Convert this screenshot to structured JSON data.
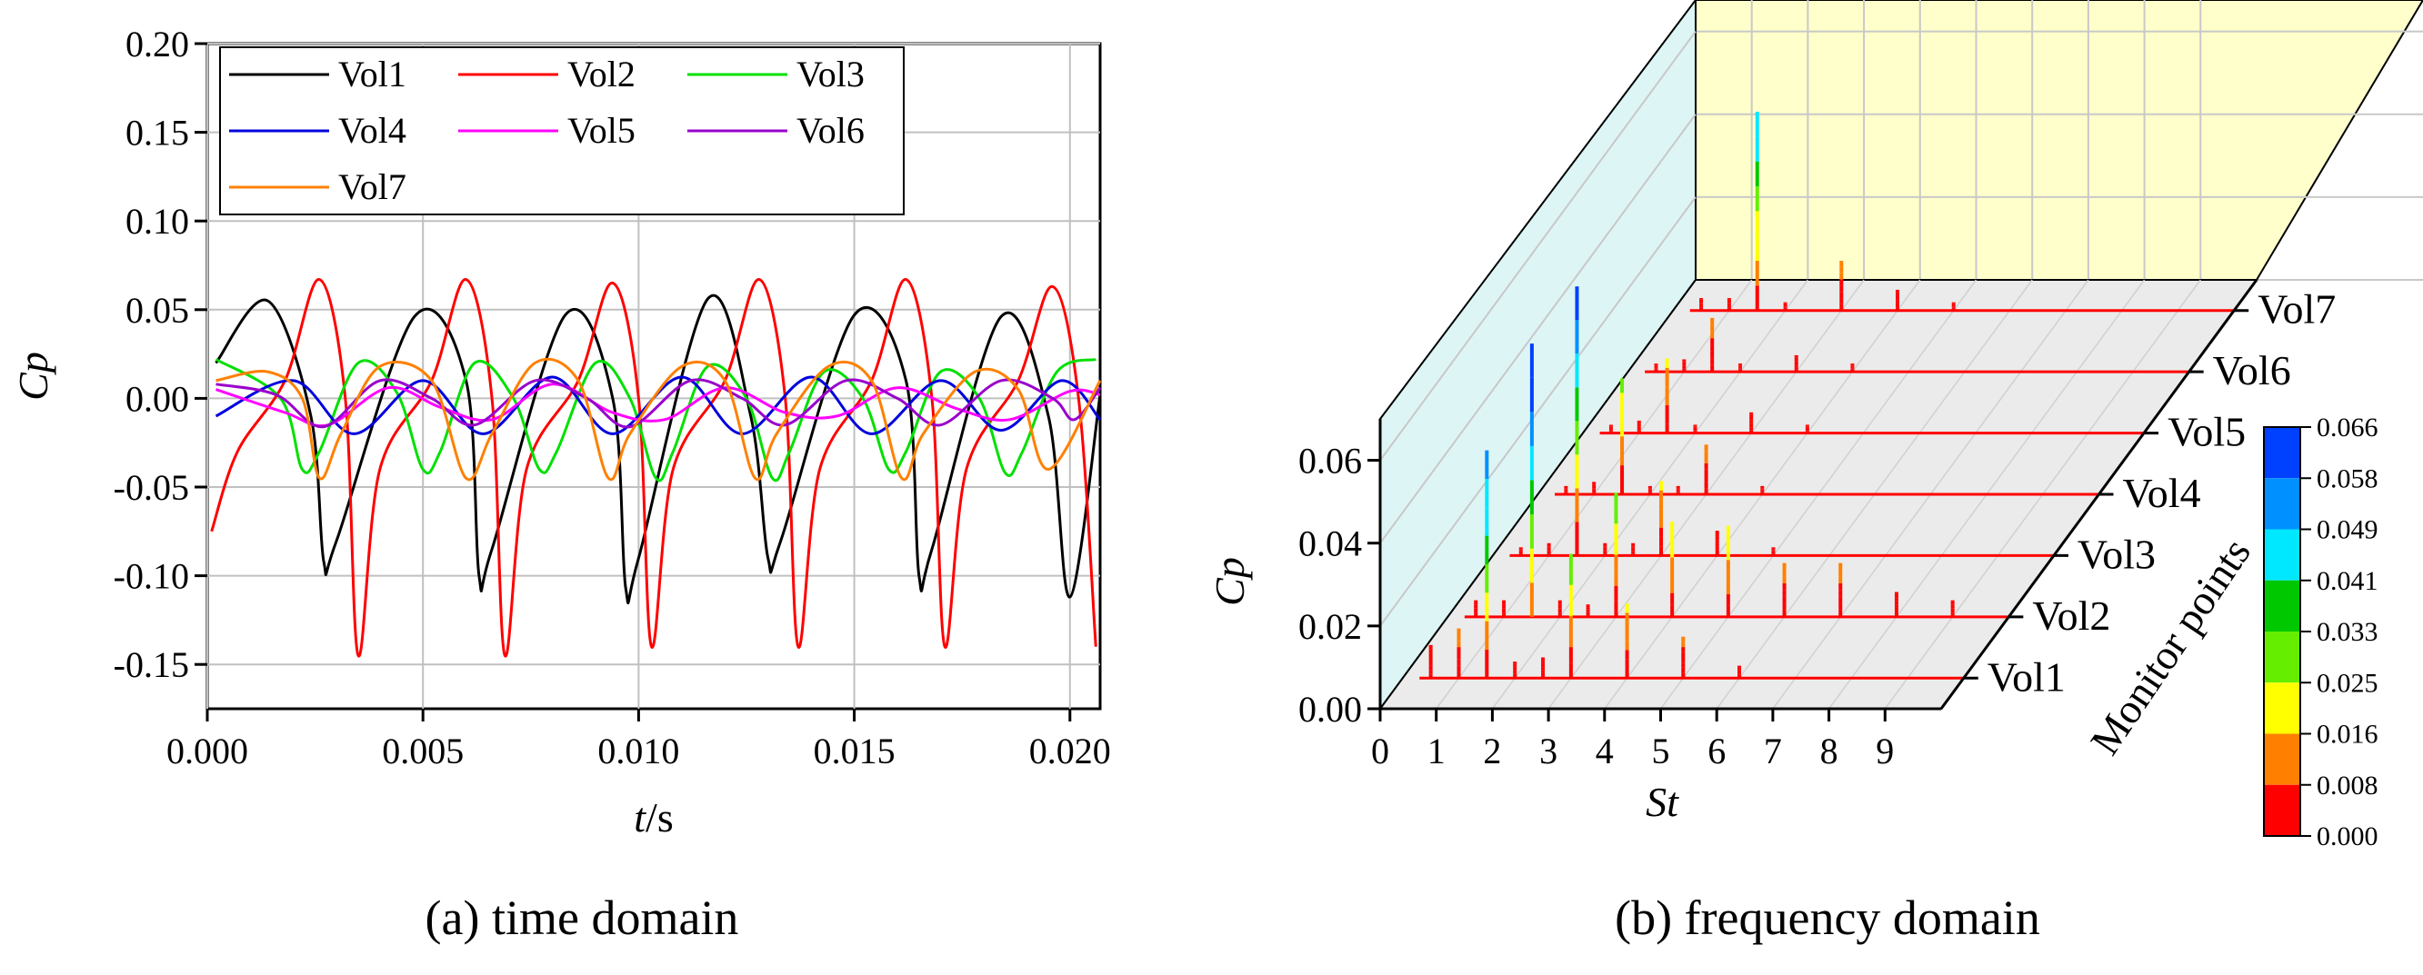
{
  "chart_data": [
    {
      "type": "line",
      "caption": "(a) time domain",
      "xlabel": "t/s",
      "ylabel": "Cp",
      "xlim": [
        0.0,
        0.0207
      ],
      "ylim": [
        -0.175,
        0.2
      ],
      "xticks": [
        "0.000",
        "0.005",
        "0.010",
        "0.015",
        "0.020"
      ],
      "yticks": [
        "-0.15",
        "-0.10",
        "-0.05",
        "0.00",
        "0.05",
        "0.10",
        "0.15",
        "0.20"
      ],
      "grid": true,
      "legend_position": "top-left",
      "series": [
        {
          "name": "Vol1",
          "color": "#000000",
          "points": [
            [
              0.0002,
              0.02
            ],
            [
              0.0014,
              0.055
            ],
            [
              0.0024,
              -0.01
            ],
            [
              0.0027,
              -0.092
            ],
            [
              0.003,
              -0.08
            ],
            [
              0.0048,
              0.046
            ],
            [
              0.006,
              0.01
            ],
            [
              0.0063,
              -0.1
            ],
            [
              0.0066,
              -0.085
            ],
            [
              0.0083,
              0.047
            ],
            [
              0.0094,
              0.0
            ],
            [
              0.0097,
              -0.107
            ],
            [
              0.01,
              -0.09
            ],
            [
              0.0116,
              0.056
            ],
            [
              0.0126,
              -0.01
            ],
            [
              0.013,
              -0.09
            ],
            [
              0.0133,
              -0.08
            ],
            [
              0.015,
              0.047
            ],
            [
              0.0162,
              0.01
            ],
            [
              0.0165,
              -0.1
            ],
            [
              0.0168,
              -0.085
            ],
            [
              0.0184,
              0.046
            ],
            [
              0.0195,
              -0.01
            ],
            [
              0.02,
              -0.112
            ],
            [
              0.0207,
              0.002
            ]
          ]
        },
        {
          "name": "Vol2",
          "color": "#ff0000",
          "points": [
            [
              0.0001,
              -0.075
            ],
            [
              0.0007,
              -0.03
            ],
            [
              0.0018,
              0.01
            ],
            [
              0.0026,
              0.067
            ],
            [
              0.0032,
              0.0
            ],
            [
              0.0035,
              -0.145
            ],
            [
              0.004,
              -0.04
            ],
            [
              0.0052,
              0.01
            ],
            [
              0.006,
              0.067
            ],
            [
              0.0066,
              0.0
            ],
            [
              0.0069,
              -0.145
            ],
            [
              0.0074,
              -0.04
            ],
            [
              0.0086,
              0.01
            ],
            [
              0.0094,
              0.065
            ],
            [
              0.01,
              0.0
            ],
            [
              0.0103,
              -0.14
            ],
            [
              0.0108,
              -0.04
            ],
            [
              0.012,
              0.01
            ],
            [
              0.0128,
              0.067
            ],
            [
              0.0134,
              0.0
            ],
            [
              0.0137,
              -0.14
            ],
            [
              0.0142,
              -0.04
            ],
            [
              0.0154,
              0.01
            ],
            [
              0.0162,
              0.067
            ],
            [
              0.0168,
              0.0
            ],
            [
              0.0171,
              -0.14
            ],
            [
              0.0176,
              -0.04
            ],
            [
              0.0188,
              0.01
            ],
            [
              0.0196,
              0.063
            ],
            [
              0.0202,
              0.0
            ],
            [
              0.0206,
              -0.14
            ]
          ]
        },
        {
          "name": "Vol3",
          "color": "#00e000",
          "points": [
            [
              0.0002,
              0.022
            ],
            [
              0.0017,
              0.0
            ],
            [
              0.0022,
              -0.04
            ],
            [
              0.0026,
              -0.03
            ],
            [
              0.0035,
              0.02
            ],
            [
              0.0044,
              0.003
            ],
            [
              0.005,
              -0.04
            ],
            [
              0.0054,
              -0.03
            ],
            [
              0.0062,
              0.02
            ],
            [
              0.0071,
              0.0
            ],
            [
              0.0077,
              -0.04
            ],
            [
              0.0081,
              -0.03
            ],
            [
              0.009,
              0.02
            ],
            [
              0.0098,
              0.0
            ],
            [
              0.0104,
              -0.045
            ],
            [
              0.0108,
              -0.03
            ],
            [
              0.0116,
              0.018
            ],
            [
              0.0125,
              0.0
            ],
            [
              0.0131,
              -0.045
            ],
            [
              0.0135,
              -0.03
            ],
            [
              0.0143,
              0.015
            ],
            [
              0.0152,
              0.0
            ],
            [
              0.0158,
              -0.04
            ],
            [
              0.0162,
              -0.03
            ],
            [
              0.017,
              0.015
            ],
            [
              0.0179,
              0.0
            ],
            [
              0.0185,
              -0.042
            ],
            [
              0.0189,
              -0.03
            ],
            [
              0.0197,
              0.015
            ],
            [
              0.0206,
              0.022
            ]
          ]
        },
        {
          "name": "Vol4",
          "color": "#0000dd",
          "points": [
            [
              0.0002,
              -0.01
            ],
            [
              0.002,
              0.01
            ],
            [
              0.0034,
              -0.02
            ],
            [
              0.005,
              0.01
            ],
            [
              0.0064,
              -0.02
            ],
            [
              0.008,
              0.012
            ],
            [
              0.0094,
              -0.02
            ],
            [
              0.011,
              0.012
            ],
            [
              0.0124,
              -0.02
            ],
            [
              0.014,
              0.012
            ],
            [
              0.0154,
              -0.02
            ],
            [
              0.017,
              0.01
            ],
            [
              0.0184,
              -0.018
            ],
            [
              0.0198,
              0.01
            ],
            [
              0.0207,
              -0.012
            ]
          ]
        },
        {
          "name": "Vol5",
          "color": "#ff00ff",
          "points": [
            [
              0.0002,
              0.005
            ],
            [
              0.0018,
              -0.008
            ],
            [
              0.0028,
              -0.015
            ],
            [
              0.0042,
              0.006
            ],
            [
              0.0054,
              -0.005
            ],
            [
              0.0066,
              -0.012
            ],
            [
              0.008,
              0.008
            ],
            [
              0.0094,
              -0.008
            ],
            [
              0.0106,
              -0.012
            ],
            [
              0.012,
              0.006
            ],
            [
              0.0134,
              -0.008
            ],
            [
              0.0146,
              -0.01
            ],
            [
              0.016,
              0.006
            ],
            [
              0.0174,
              -0.006
            ],
            [
              0.0186,
              -0.012
            ],
            [
              0.02,
              0.004
            ],
            [
              0.0207,
              0.002
            ]
          ]
        },
        {
          "name": "Vol6",
          "color": "#9900cc",
          "points": [
            [
              0.0002,
              0.008
            ],
            [
              0.0016,
              0.002
            ],
            [
              0.0027,
              -0.016
            ],
            [
              0.004,
              0.01
            ],
            [
              0.0052,
              0.0
            ],
            [
              0.0062,
              -0.015
            ],
            [
              0.0076,
              0.01
            ],
            [
              0.0088,
              0.0
            ],
            [
              0.0098,
              -0.016
            ],
            [
              0.0112,
              0.01
            ],
            [
              0.0124,
              0.0
            ],
            [
              0.0134,
              -0.015
            ],
            [
              0.0148,
              0.01
            ],
            [
              0.016,
              0.0
            ],
            [
              0.017,
              -0.015
            ],
            [
              0.0184,
              0.01
            ],
            [
              0.0196,
              0.0
            ],
            [
              0.0201,
              -0.012
            ],
            [
              0.0207,
              0.006
            ]
          ]
        },
        {
          "name": "Vol7",
          "color": "#ff8000",
          "points": [
            [
              0.0002,
              0.01
            ],
            [
              0.0014,
              0.015
            ],
            [
              0.0022,
              0.0
            ],
            [
              0.0026,
              -0.045
            ],
            [
              0.0031,
              -0.02
            ],
            [
              0.004,
              0.018
            ],
            [
              0.0052,
              0.01
            ],
            [
              0.006,
              -0.045
            ],
            [
              0.0066,
              -0.02
            ],
            [
              0.0076,
              0.02
            ],
            [
              0.0086,
              0.01
            ],
            [
              0.0093,
              -0.045
            ],
            [
              0.0098,
              -0.02
            ],
            [
              0.011,
              0.018
            ],
            [
              0.012,
              0.01
            ],
            [
              0.0127,
              -0.045
            ],
            [
              0.0132,
              -0.02
            ],
            [
              0.0144,
              0.018
            ],
            [
              0.0154,
              0.01
            ],
            [
              0.0161,
              -0.045
            ],
            [
              0.0166,
              -0.02
            ],
            [
              0.0178,
              0.015
            ],
            [
              0.0188,
              0.005
            ],
            [
              0.0195,
              -0.04
            ],
            [
              0.0207,
              0.01
            ]
          ]
        }
      ]
    },
    {
      "type": "waterfall-3d",
      "caption": "(b) frequency domain",
      "xlabel": "St",
      "ylabel": "Cp",
      "zlabel": "Monitor points",
      "xticks": [
        "0",
        "1",
        "2",
        "3",
        "4",
        "5",
        "6",
        "7",
        "8",
        "9"
      ],
      "yticks": [
        "0.00",
        "0.02",
        "0.04",
        "0.06"
      ],
      "ylim": [
        0,
        0.07
      ],
      "categories": [
        "Vol1",
        "Vol2",
        "Vol3",
        "Vol4",
        "Vol5",
        "Vol6",
        "Vol7"
      ],
      "colorbar": {
        "ticks": [
          "0.066",
          "0.058",
          "0.049",
          "0.041",
          "0.033",
          "0.025",
          "0.016",
          "0.008",
          "0.000"
        ],
        "colors": [
          "#0040ff",
          "#0090ff",
          "#00e8ff",
          "#00c800",
          "#66ee00",
          "#ffff00",
          "#ff8000",
          "#ff0000"
        ]
      },
      "series": [
        {
          "name": "Vol1",
          "peaks": [
            [
              0.5,
              0.008
            ],
            [
              1.0,
              0.012
            ],
            [
              1.5,
              0.055
            ],
            [
              2.0,
              0.004
            ],
            [
              2.5,
              0.005
            ],
            [
              3.0,
              0.03
            ],
            [
              4.0,
              0.018
            ],
            [
              5.0,
              0.01
            ],
            [
              6.0,
              0.003
            ]
          ]
        },
        {
          "name": "Vol2",
          "peaks": [
            [
              0.5,
              0.004
            ],
            [
              1.0,
              0.004
            ],
            [
              1.5,
              0.066
            ],
            [
              2.0,
              0.004
            ],
            [
              2.5,
              0.003
            ],
            [
              3.0,
              0.03
            ],
            [
              4.0,
              0.023
            ],
            [
              5.0,
              0.022
            ],
            [
              6.0,
              0.013
            ],
            [
              7.0,
              0.013
            ],
            [
              8.0,
              0.006
            ],
            [
              9.0,
              0.004
            ]
          ]
        },
        {
          "name": "Vol3",
          "peaks": [
            [
              0.5,
              0.002
            ],
            [
              1.0,
              0.003
            ],
            [
              1.5,
              0.065
            ],
            [
              2.0,
              0.003
            ],
            [
              2.5,
              0.003
            ],
            [
              3.0,
              0.018
            ],
            [
              4.0,
              0.006
            ],
            [
              5.0,
              0.002
            ]
          ]
        },
        {
          "name": "Vol4",
          "peaks": [
            [
              0.5,
              0.002
            ],
            [
              1.0,
              0.003
            ],
            [
              1.5,
              0.028
            ],
            [
              2.0,
              0.002
            ],
            [
              2.5,
              0.002
            ],
            [
              3.0,
              0.012
            ],
            [
              4.0,
              0.002
            ]
          ]
        },
        {
          "name": "Vol5",
          "peaks": [
            [
              0.5,
              0.002
            ],
            [
              1.0,
              0.003
            ],
            [
              1.5,
              0.018
            ],
            [
              2.0,
              0.002
            ],
            [
              3.0,
              0.005
            ],
            [
              4.0,
              0.002
            ]
          ]
        },
        {
          "name": "Vol6",
          "peaks": [
            [
              0.5,
              0.002
            ],
            [
              1.0,
              0.003
            ],
            [
              1.5,
              0.013
            ],
            [
              2.0,
              0.002
            ],
            [
              3.0,
              0.004
            ],
            [
              4.0,
              0.002
            ]
          ]
        },
        {
          "name": "Vol7",
          "peaks": [
            [
              0.5,
              0.003
            ],
            [
              1.0,
              0.003
            ],
            [
              1.5,
              0.048
            ],
            [
              2.0,
              0.002
            ],
            [
              3.0,
              0.012
            ],
            [
              4.0,
              0.005
            ],
            [
              5.0,
              0.002
            ]
          ]
        }
      ]
    }
  ]
}
